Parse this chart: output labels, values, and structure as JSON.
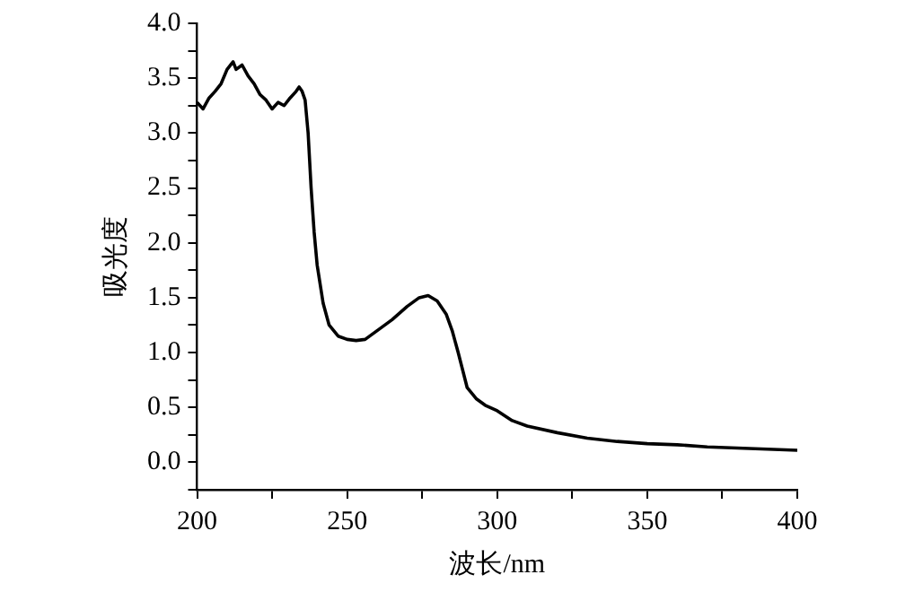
{
  "chart_data": {
    "type": "line",
    "xlabel": "波长/nm",
    "ylabel": "吸光度",
    "x": [
      200,
      202,
      204,
      206,
      208,
      210,
      212,
      213,
      215,
      217,
      219,
      221,
      223,
      225,
      227,
      229,
      231,
      233,
      234,
      235,
      236,
      237,
      238,
      239,
      240,
      242,
      244,
      247,
      250,
      253,
      256,
      260,
      265,
      270,
      274,
      277,
      280,
      283,
      285,
      287,
      290,
      293,
      296,
      300,
      305,
      310,
      320,
      330,
      340,
      350,
      360,
      370,
      380,
      390,
      400
    ],
    "series": [
      {
        "color": "#000000",
        "values": [
          3.28,
          3.22,
          3.32,
          3.38,
          3.45,
          3.58,
          3.65,
          3.58,
          3.62,
          3.52,
          3.45,
          3.35,
          3.3,
          3.22,
          3.28,
          3.25,
          3.32,
          3.38,
          3.42,
          3.38,
          3.3,
          3.0,
          2.5,
          2.1,
          1.8,
          1.45,
          1.25,
          1.15,
          1.12,
          1.11,
          1.12,
          1.2,
          1.3,
          1.42,
          1.5,
          1.52,
          1.47,
          1.35,
          1.2,
          1.0,
          0.68,
          0.58,
          0.52,
          0.47,
          0.38,
          0.33,
          0.27,
          0.22,
          0.19,
          0.17,
          0.16,
          0.14,
          0.13,
          0.12,
          0.11
        ]
      }
    ],
    "xlim": [
      200,
      400
    ],
    "ylim": [
      -0.25,
      4.0
    ],
    "xticks": [
      200,
      {
        "value": 225,
        "label": null
      },
      250,
      {
        "value": 275,
        "label": null
      },
      300,
      {
        "value": 325,
        "label": null
      },
      350,
      {
        "value": 375,
        "label": null
      },
      400
    ],
    "yticks": [
      {
        "value": -0.25,
        "label": null
      },
      {
        "value": 0,
        "label": "0.0"
      },
      {
        "value": 0.25,
        "label": null
      },
      {
        "value": 0.5,
        "label": "0.5"
      },
      {
        "value": 0.75,
        "label": null
      },
      {
        "value": 1,
        "label": "1.0"
      },
      {
        "value": 1.25,
        "label": null
      },
      {
        "value": 1.5,
        "label": "1.5"
      },
      {
        "value": 1.75,
        "label": null
      },
      {
        "value": 2,
        "label": "2.0"
      },
      {
        "value": 2.25,
        "label": null
      },
      {
        "value": 2.5,
        "label": "2.5"
      },
      {
        "value": 2.75,
        "label": null
      },
      {
        "value": 3,
        "label": "3.0"
      },
      {
        "value": 3.25,
        "label": null
      },
      {
        "value": 3.5,
        "label": "3.5"
      },
      {
        "value": 3.75,
        "label": null
      },
      {
        "value": 4,
        "label": "4.0"
      }
    ],
    "grid": false,
    "legend": false,
    "marker": "none",
    "line_style": "solid"
  }
}
